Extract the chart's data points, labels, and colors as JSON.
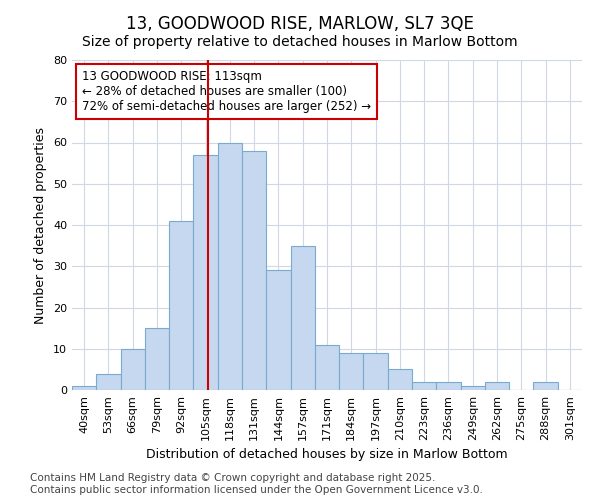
{
  "title": "13, GOODWOOD RISE, MARLOW, SL7 3QE",
  "subtitle": "Size of property relative to detached houses in Marlow Bottom",
  "xlabel": "Distribution of detached houses by size in Marlow Bottom",
  "ylabel": "Number of detached properties",
  "categories": [
    "40sqm",
    "53sqm",
    "66sqm",
    "79sqm",
    "92sqm",
    "105sqm",
    "118sqm",
    "131sqm",
    "144sqm",
    "157sqm",
    "171sqm",
    "184sqm",
    "197sqm",
    "210sqm",
    "223sqm",
    "236sqm",
    "249sqm",
    "262sqm",
    "275sqm",
    "288sqm",
    "301sqm"
  ],
  "values": [
    1,
    4,
    10,
    15,
    41,
    57,
    60,
    58,
    29,
    35,
    11,
    9,
    9,
    5,
    2,
    2,
    1,
    2,
    0,
    2,
    0
  ],
  "bar_color": "#c5d8ef",
  "bar_edge_color": "#7aaad0",
  "vline_color": "#cc0000",
  "annotation_text": "13 GOODWOOD RISE: 113sqm\n← 28% of detached houses are smaller (100)\n72% of semi-detached houses are larger (252) →",
  "annotation_box_facecolor": "#ffffff",
  "annotation_box_edgecolor": "#cc0000",
  "ylim": [
    0,
    80
  ],
  "yticks": [
    0,
    10,
    20,
    30,
    40,
    50,
    60,
    70,
    80
  ],
  "fig_bg_color": "#ffffff",
  "ax_bg_color": "#ffffff",
  "grid_color": "#d0d8e8",
  "title_fontsize": 12,
  "subtitle_fontsize": 10,
  "xlabel_fontsize": 9,
  "ylabel_fontsize": 9,
  "tick_fontsize": 8,
  "annotation_fontsize": 8.5,
  "footnote_fontsize": 7.5,
  "footnote": "Contains HM Land Registry data © Crown copyright and database right 2025.\nContains public sector information licensed under the Open Government Licence v3.0."
}
